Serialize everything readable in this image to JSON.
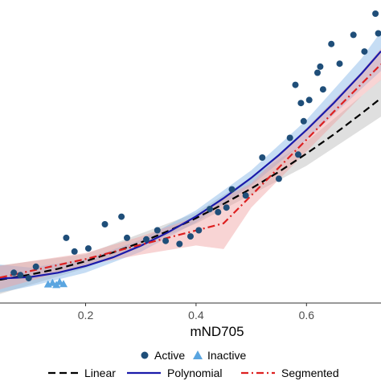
{
  "chart_data": {
    "type": "scatter",
    "title": "",
    "xlabel": "mND705",
    "ylabel": "",
    "xlim": [
      0.045,
      0.735
    ],
    "ylim": [
      0.0,
      1.0
    ],
    "grid": false,
    "x_ticks": [
      {
        "value": 0.2,
        "label": "0.2"
      },
      {
        "value": 0.4,
        "label": "0.4"
      },
      {
        "value": 0.6,
        "label": "0.6"
      }
    ],
    "point_series": [
      {
        "name": "Active",
        "marker": "circle",
        "color": "#1f4e79",
        "points": [
          [
            0.07,
            0.1
          ],
          [
            0.082,
            0.092
          ],
          [
            0.097,
            0.082
          ],
          [
            0.11,
            0.12
          ],
          [
            0.165,
            0.215
          ],
          [
            0.18,
            0.17
          ],
          [
            0.205,
            0.18
          ],
          [
            0.235,
            0.26
          ],
          [
            0.265,
            0.285
          ],
          [
            0.275,
            0.215
          ],
          [
            0.31,
            0.21
          ],
          [
            0.33,
            0.24
          ],
          [
            0.345,
            0.205
          ],
          [
            0.37,
            0.195
          ],
          [
            0.39,
            0.22
          ],
          [
            0.405,
            0.24
          ],
          [
            0.425,
            0.31
          ],
          [
            0.44,
            0.3
          ],
          [
            0.455,
            0.315
          ],
          [
            0.465,
            0.375
          ],
          [
            0.49,
            0.355
          ],
          [
            0.52,
            0.48
          ],
          [
            0.55,
            0.41
          ],
          [
            0.57,
            0.545
          ],
          [
            0.58,
            0.72
          ],
          [
            0.585,
            0.49
          ],
          [
            0.59,
            0.66
          ],
          [
            0.595,
            0.6
          ],
          [
            0.605,
            0.67
          ],
          [
            0.62,
            0.76
          ],
          [
            0.625,
            0.78
          ],
          [
            0.63,
            0.705
          ],
          [
            0.645,
            0.855
          ],
          [
            0.66,
            0.79
          ],
          [
            0.685,
            0.885
          ],
          [
            0.705,
            0.83
          ],
          [
            0.725,
            0.955
          ],
          [
            0.73,
            0.89
          ]
        ]
      },
      {
        "name": "Inactive",
        "marker": "triangle",
        "color": "#5aa5e0",
        "points": [
          [
            0.132,
            0.062
          ],
          [
            0.14,
            0.067
          ],
          [
            0.147,
            0.06
          ],
          [
            0.153,
            0.07
          ],
          [
            0.16,
            0.063
          ]
        ]
      }
    ],
    "fits": [
      {
        "name": "Linear",
        "style": "dashed",
        "color": "#000000",
        "x": [
          0.045,
          0.1,
          0.15,
          0.2,
          0.25,
          0.3,
          0.35,
          0.4,
          0.45,
          0.5,
          0.55,
          0.6,
          0.65,
          0.7,
          0.735
        ],
        "y": [
          0.077,
          0.094,
          0.113,
          0.138,
          0.167,
          0.2,
          0.238,
          0.28,
          0.327,
          0.378,
          0.433,
          0.493,
          0.557,
          0.626,
          0.676
        ]
      },
      {
        "name": "Polynomial",
        "style": "solid",
        "color": "#1a1aaa",
        "x": [
          0.045,
          0.1,
          0.15,
          0.2,
          0.25,
          0.3,
          0.35,
          0.4,
          0.45,
          0.5,
          0.55,
          0.6,
          0.65,
          0.7,
          0.735
        ],
        "y": [
          0.081,
          0.086,
          0.1,
          0.122,
          0.151,
          0.189,
          0.234,
          0.286,
          0.346,
          0.413,
          0.488,
          0.571,
          0.661,
          0.758,
          0.831
        ]
      },
      {
        "name": "Segmented",
        "style": "dashdot",
        "color": "#dd2020",
        "x": [
          0.045,
          0.2,
          0.45,
          0.5,
          0.55,
          0.6,
          0.65,
          0.7,
          0.735
        ],
        "y": [
          0.084,
          0.145,
          0.263,
          0.355,
          0.447,
          0.539,
          0.632,
          0.724,
          0.788
        ]
      }
    ],
    "bands": [
      {
        "name": "Linear",
        "color": "#bfbfbf",
        "opacity": 0.5,
        "x": [
          0.045,
          0.2,
          0.4,
          0.6,
          0.735
        ],
        "lo": [
          0.03,
          0.115,
          0.262,
          0.453,
          0.615
        ],
        "hi": [
          0.124,
          0.161,
          0.298,
          0.533,
          0.737
        ]
      },
      {
        "name": "Polynomial",
        "color": "#80b3e6",
        "opacity": 0.45,
        "x": [
          0.045,
          0.1,
          0.2,
          0.3,
          0.4,
          0.5,
          0.6,
          0.7,
          0.735
        ],
        "lo": [
          0.035,
          0.055,
          0.1,
          0.169,
          0.266,
          0.388,
          0.538,
          0.708,
          0.766
        ],
        "hi": [
          0.127,
          0.117,
          0.144,
          0.209,
          0.306,
          0.438,
          0.604,
          0.808,
          0.896
        ]
      },
      {
        "name": "Segmented",
        "color": "#f0a0a0",
        "opacity": 0.45,
        "x": [
          0.045,
          0.2,
          0.3,
          0.4,
          0.45,
          0.5,
          0.6,
          0.7,
          0.735
        ],
        "lo": [
          0.045,
          0.125,
          0.16,
          0.19,
          0.178,
          0.315,
          0.5,
          0.684,
          0.736
        ],
        "hi": [
          0.123,
          0.165,
          0.22,
          0.285,
          0.348,
          0.395,
          0.578,
          0.764,
          0.84
        ]
      }
    ],
    "legend": {
      "placement": "bottom",
      "points": [
        {
          "label": "Active",
          "marker": "circle",
          "color": "#1f4e79"
        },
        {
          "label": "Inactive",
          "marker": "triangle",
          "color": "#5aa5e0"
        }
      ],
      "lines": [
        {
          "label": "Linear",
          "style": "dashed",
          "color": "#000000"
        },
        {
          "label": "Polynomial",
          "style": "solid",
          "color": "#1a1aaa"
        },
        {
          "label": "Segmented",
          "style": "dashdot",
          "color": "#dd2020"
        }
      ]
    }
  }
}
